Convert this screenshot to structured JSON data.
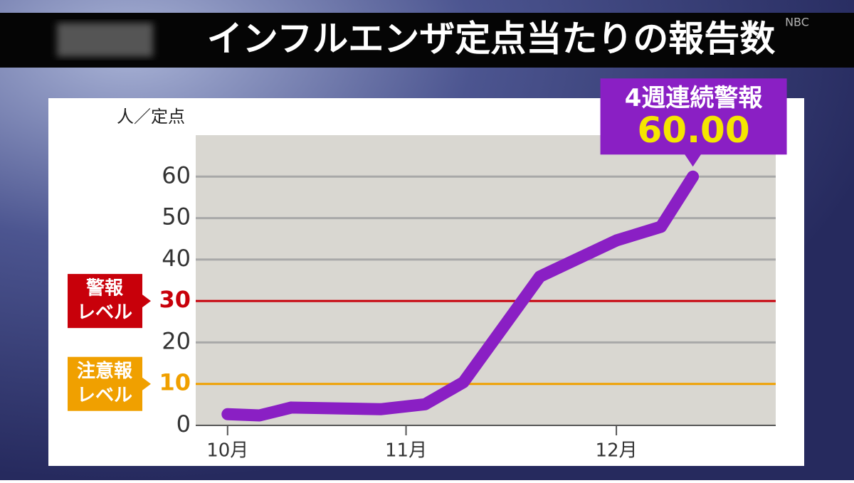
{
  "header": {
    "title": "インフルエンザ定点当たりの報告数",
    "logo": "NBC"
  },
  "chart_data": {
    "type": "line",
    "y_label": "人／定点",
    "x": [
      0,
      5,
      10,
      24,
      31,
      37,
      49,
      61,
      68,
      73
    ],
    "series": [
      {
        "color": "#8a1fc4",
        "values": [
          2.7,
          2.4,
          4.3,
          3.9,
          5.1,
          10.4,
          35.9,
          44.6,
          47.9,
          60.0
        ],
        "value_labels": [
          null,
          null,
          null,
          null,
          null,
          null,
          null,
          null,
          null,
          "60.00"
        ]
      }
    ],
    "xlim": [
      -5,
      86
    ],
    "xticks": [
      {
        "value": 0,
        "label": "10月"
      },
      {
        "value": 28,
        "label": "11月"
      },
      {
        "value": 61,
        "label": "12月"
      }
    ],
    "ylim": [
      0,
      70
    ],
    "yticks": [
      0,
      10,
      20,
      30,
      40,
      50,
      60
    ],
    "grid": true,
    "thresholds": [
      {
        "value": 30,
        "color": "#c8000a",
        "lines": [
          "警報",
          "レベル"
        ]
      },
      {
        "value": 10,
        "color": "#f0a000",
        "lines": [
          "注意報",
          "レベル"
        ]
      }
    ],
    "callout": {
      "text": "4週連続警報",
      "color": "#8a1fc4",
      "value_color": "#f5e600"
    }
  }
}
